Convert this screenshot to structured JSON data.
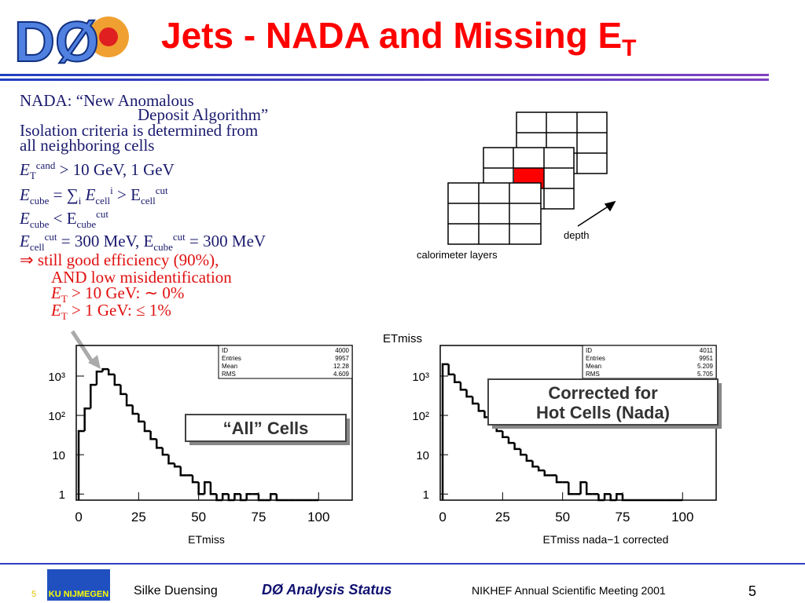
{
  "header": {
    "title": "Jets - NADA and Missing E",
    "title_sub": "T",
    "logo": "DØ"
  },
  "text_lines": [
    "NADA: “New Anomalous",
    "Deposit Algorithm”",
    "Isolation criteria is determined from",
    "all neighboring cells",
    [
      "E",
      "T",
      "cand",
      " > 10 GeV, 1 GeV"
    ],
    [
      "E",
      "cube",
      " = ∑",
      "i",
      " E",
      "cell",
      "i",
      " > E",
      "cell",
      "cut"
    ],
    [
      "E",
      "cube",
      " < E",
      "cube",
      "cut"
    ],
    [
      "E",
      "cell",
      "cut",
      " = 300 MeV, E",
      "cube",
      "cut",
      " = 300 MeV"
    ],
    "⇒ still good efficiency (90%),",
    "AND low misidentification",
    [
      "E",
      "T",
      " > 10 GeV: ∼ 0%"
    ],
    [
      "E",
      "T",
      " > 1 GeV: ≤ 1%"
    ]
  ],
  "diagram": {
    "depth": "depth",
    "layers": "calorimeter layers"
  },
  "plots_title": "ETmiss",
  "chart_data": [
    {
      "type": "histogram",
      "xlabel": "ETmiss",
      "color": "#000000",
      "log_y": true,
      "bins": [
        0,
        2.5,
        5,
        7.5,
        10,
        12.5,
        15,
        17.5,
        20,
        22.5,
        25,
        27.5,
        30,
        32.5,
        35,
        37.5,
        40,
        42.5,
        45,
        47.5,
        50,
        52.5,
        55,
        57.5,
        60,
        62.5,
        65,
        67.5,
        70,
        72.5,
        75,
        77.5,
        80,
        82.5,
        85,
        87.5,
        90,
        92.5,
        95,
        97.5,
        100
      ],
      "counts": [
        40,
        150,
        600,
        1300,
        1500,
        1100,
        600,
        350,
        180,
        110,
        70,
        40,
        25,
        15,
        10,
        6,
        5,
        3,
        3,
        2,
        1,
        2,
        1,
        0,
        1,
        0,
        1,
        0,
        1,
        1,
        0,
        0,
        1,
        0,
        0,
        0,
        0,
        0,
        0,
        0
      ],
      "xlim": [
        -1,
        114
      ],
      "ylim": [
        0.7,
        6000
      ],
      "xticks": [
        0,
        25,
        50,
        75,
        100
      ],
      "yticks": [
        1,
        10,
        {
          "value": 100,
          "label": "10²"
        },
        {
          "value": 1000,
          "label": "10³"
        }
      ],
      "stats": [
        [
          "ID",
          4000
        ],
        [
          "Entries",
          9957
        ],
        [
          "Mean",
          12.28
        ],
        [
          "RMS",
          4.609
        ]
      ],
      "box": [
        "“All” Cells"
      ]
    },
    {
      "type": "histogram",
      "xlabel": "ETmiss nada−1 corrected",
      "color": "#000000",
      "log_y": true,
      "bins": [
        0,
        2.5,
        5,
        7.5,
        10,
        12.5,
        15,
        17.5,
        20,
        22.5,
        25,
        27.5,
        30,
        32.5,
        35,
        37.5,
        40,
        42.5,
        45,
        47.5,
        50,
        52.5,
        55,
        57.5,
        60,
        62.5,
        65,
        67.5,
        70,
        72.5,
        75,
        77.5,
        80,
        82.5,
        85,
        87.5,
        90,
        92.5,
        95,
        97.5,
        100
      ],
      "counts": [
        2000,
        1100,
        700,
        450,
        300,
        200,
        130,
        90,
        60,
        40,
        28,
        20,
        14,
        10,
        7,
        5,
        4,
        3,
        3,
        2,
        2,
        1,
        1,
        2,
        1,
        1,
        0,
        1,
        0,
        1,
        0,
        0,
        0,
        0,
        0,
        0,
        0,
        0,
        0,
        0
      ],
      "xlim": [
        -1,
        114
      ],
      "ylim": [
        0.7,
        6000
      ],
      "xticks": [
        0,
        25,
        50,
        75,
        100
      ],
      "yticks": [
        1,
        10,
        {
          "value": 100,
          "label": "10²"
        },
        {
          "value": 1000,
          "label": "10³"
        }
      ],
      "stats": [
        [
          "ID",
          4011
        ],
        [
          "Entries",
          9951
        ],
        [
          "Mean",
          5.209
        ],
        [
          "RMS",
          5.705
        ]
      ],
      "box": [
        "Corrected for",
        "Hot Cells (Nada)"
      ]
    }
  ],
  "footer": {
    "page_small": "5",
    "author": "Silke Duensing",
    "talk": "DØ Analysis Status",
    "meeting": "NIKHEF Annual Scientific Meeting 2001",
    "page": "5",
    "logo": "KU NIJMEGEN"
  }
}
